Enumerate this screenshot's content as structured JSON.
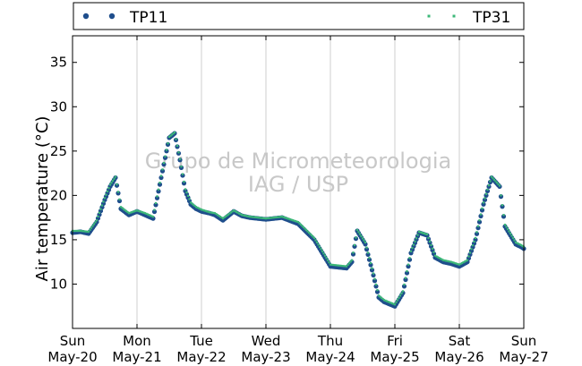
{
  "chart_data": {
    "type": "scatter",
    "ylabel": "Air temperature (°C)",
    "xlabel": "",
    "xlim": [
      "2012-05-20 00:00",
      "2012-05-27 00:00"
    ],
    "ylim": [
      5,
      38
    ],
    "yticks": [
      10,
      15,
      20,
      25,
      30,
      35
    ],
    "xtick_labels": [
      [
        "Sun",
        "May-20"
      ],
      [
        "Mon",
        "May-21"
      ],
      [
        "Tue",
        "May-22"
      ],
      [
        "Wed",
        "May-23"
      ],
      [
        "Thu",
        "May-24"
      ],
      [
        "Fri",
        "May-25"
      ],
      [
        "Sat",
        "May-26"
      ],
      [
        "Sun",
        "May-27"
      ]
    ],
    "grid": "vertical",
    "legend_placement": "top, above plot",
    "watermark": [
      "Grupo de Micrometeorologia",
      "IAG / USP"
    ],
    "series": [
      {
        "name": "TP11",
        "marker": "circle",
        "color": "#1f4e8c",
        "x": [
          "2012-05-20 00:00",
          "2012-05-20 03:00",
          "2012-05-20 06:00",
          "2012-05-20 09:00",
          "2012-05-20 12:00",
          "2012-05-20 14:00",
          "2012-05-20 16:00",
          "2012-05-20 18:00",
          "2012-05-20 21:00",
          "2012-05-21 00:00",
          "2012-05-21 03:00",
          "2012-05-21 06:00",
          "2012-05-21 09:00",
          "2012-05-21 12:00",
          "2012-05-21 14:00",
          "2012-05-21 16:00",
          "2012-05-21 18:00",
          "2012-05-21 20:00",
          "2012-05-21 22:00",
          "2012-05-22 00:00",
          "2012-05-22 03:00",
          "2012-05-22 05:00",
          "2012-05-22 08:00",
          "2012-05-22 12:00",
          "2012-05-22 15:00",
          "2012-05-22 18:00",
          "2012-05-22 21:00",
          "2012-05-23 00:00",
          "2012-05-23 06:00",
          "2012-05-23 12:00",
          "2012-05-23 18:00",
          "2012-05-24 00:00",
          "2012-05-24 06:00",
          "2012-05-24 08:00",
          "2012-05-24 10:00",
          "2012-05-24 13:00",
          "2012-05-24 16:00",
          "2012-05-24 18:00",
          "2012-05-24 20:00",
          "2012-05-25 00:00",
          "2012-05-25 03:00",
          "2012-05-25 06:00",
          "2012-05-25 09:00",
          "2012-05-25 12:00",
          "2012-05-25 15:00",
          "2012-05-25 18:00",
          "2012-05-25 21:00",
          "2012-05-26 00:00",
          "2012-05-26 03:00",
          "2012-05-26 06:00",
          "2012-05-26 09:00",
          "2012-05-26 12:00",
          "2012-05-26 15:00",
          "2012-05-26 17:00",
          "2012-05-26 19:00",
          "2012-05-26 21:00",
          "2012-05-26 23:00",
          "2012-05-27 00:00"
        ],
        "y": [
          15.8,
          15.9,
          15.7,
          17.0,
          19.5,
          21.0,
          22.0,
          18.5,
          17.8,
          18.2,
          17.8,
          17.4,
          22.0,
          26.5,
          27.0,
          24.0,
          20.5,
          19.0,
          18.5,
          18.2,
          18.0,
          17.8,
          17.2,
          18.2,
          17.7,
          17.5,
          17.4,
          17.3,
          17.5,
          16.8,
          15.0,
          12.0,
          11.8,
          12.5,
          16.0,
          14.5,
          11.0,
          8.5,
          8.0,
          7.5,
          9.0,
          13.5,
          15.8,
          15.5,
          13.0,
          12.5,
          12.3,
          12.0,
          12.5,
          15.0,
          19.0,
          22.0,
          21.0,
          16.5,
          15.5,
          14.5,
          14.2,
          14.0
        ]
      },
      {
        "name": "TP31",
        "marker": "small square",
        "color": "#3cb878",
        "x": [
          "2012-05-20 00:00",
          "2012-05-20 03:00",
          "2012-05-20 06:00",
          "2012-05-20 09:00",
          "2012-05-20 12:00",
          "2012-05-20 14:00",
          "2012-05-20 16:00",
          "2012-05-20 18:00",
          "2012-05-20 21:00",
          "2012-05-21 00:00",
          "2012-05-21 03:00",
          "2012-05-21 06:00",
          "2012-05-21 09:00",
          "2012-05-21 12:00",
          "2012-05-21 14:00",
          "2012-05-21 16:00",
          "2012-05-21 18:00",
          "2012-05-21 20:00",
          "2012-05-21 22:00",
          "2012-05-22 00:00",
          "2012-05-22 03:00",
          "2012-05-22 05:00",
          "2012-05-22 08:00",
          "2012-05-22 12:00",
          "2012-05-22 15:00",
          "2012-05-22 18:00",
          "2012-05-22 21:00",
          "2012-05-23 00:00",
          "2012-05-23 06:00",
          "2012-05-23 12:00",
          "2012-05-23 18:00",
          "2012-05-24 00:00",
          "2012-05-24 06:00",
          "2012-05-24 08:00",
          "2012-05-24 10:00",
          "2012-05-24 13:00",
          "2012-05-24 16:00",
          "2012-05-24 18:00",
          "2012-05-24 20:00",
          "2012-05-25 00:00",
          "2012-05-25 03:00",
          "2012-05-25 06:00",
          "2012-05-25 09:00",
          "2012-05-25 12:00",
          "2012-05-25 15:00",
          "2012-05-25 18:00",
          "2012-05-25 21:00",
          "2012-05-26 00:00",
          "2012-05-26 03:00",
          "2012-05-26 06:00",
          "2012-05-26 09:00",
          "2012-05-26 12:00",
          "2012-05-26 15:00",
          "2012-05-26 17:00",
          "2012-05-26 19:00",
          "2012-05-26 21:00",
          "2012-05-26 23:00",
          "2012-05-27 00:00"
        ],
        "y": [
          16.0,
          16.0,
          15.9,
          17.2,
          19.7,
          21.2,
          22.1,
          18.7,
          18.0,
          18.3,
          18.0,
          17.6,
          22.2,
          26.6,
          27.1,
          24.1,
          20.7,
          19.2,
          18.7,
          18.4,
          18.1,
          18.0,
          17.4,
          18.3,
          17.8,
          17.6,
          17.5,
          17.4,
          17.6,
          17.0,
          15.2,
          12.2,
          12.0,
          12.7,
          16.1,
          14.7,
          11.2,
          8.7,
          8.2,
          7.7,
          9.2,
          13.7,
          15.9,
          15.6,
          13.2,
          12.7,
          12.5,
          12.2,
          12.7,
          15.2,
          19.2,
          22.1,
          21.1,
          16.7,
          15.7,
          14.7,
          14.4,
          14.2
        ]
      }
    ]
  }
}
